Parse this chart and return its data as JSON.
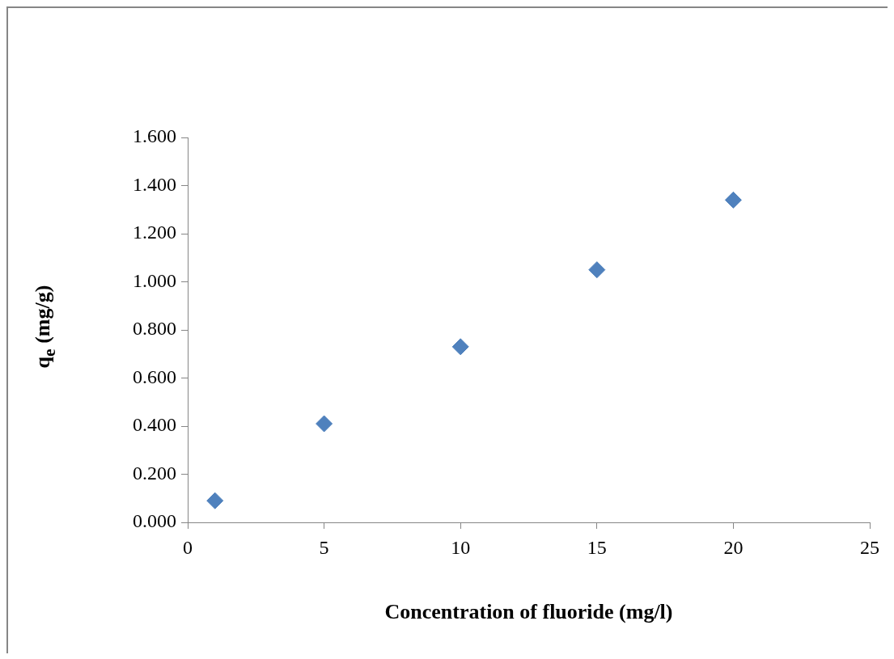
{
  "chart_data": {
    "type": "scatter",
    "xlabel": "Concentration of fluoride (mg/l)",
    "ylabel": "q$_{e}$ (mg/g)",
    "x": [
      1,
      5,
      10,
      15,
      20
    ],
    "series": [
      {
        "color": "#4f81bd",
        "values": [
          0.09,
          0.41,
          0.73,
          1.05,
          1.34
        ]
      }
    ],
    "marker": "diamond",
    "grid": false,
    "legend": false,
    "xlim": [
      0,
      25
    ],
    "xticks": [
      0,
      5,
      10,
      15,
      20,
      25
    ],
    "ylim": [
      0,
      1.6
    ],
    "yticks": [
      {
        "value": 0,
        "label": "0.000"
      },
      {
        "value": 0.2,
        "label": "0.200"
      },
      {
        "value": 0.4,
        "label": "0.400"
      },
      {
        "value": 0.6,
        "label": "0.600"
      },
      {
        "value": 0.8,
        "label": "0.800"
      },
      {
        "value": 1,
        "label": "1.000"
      },
      {
        "value": 1.2,
        "label": "1.200"
      },
      {
        "value": 1.4,
        "label": "1.400"
      },
      {
        "value": 1.6,
        "label": "1.600"
      }
    ]
  }
}
